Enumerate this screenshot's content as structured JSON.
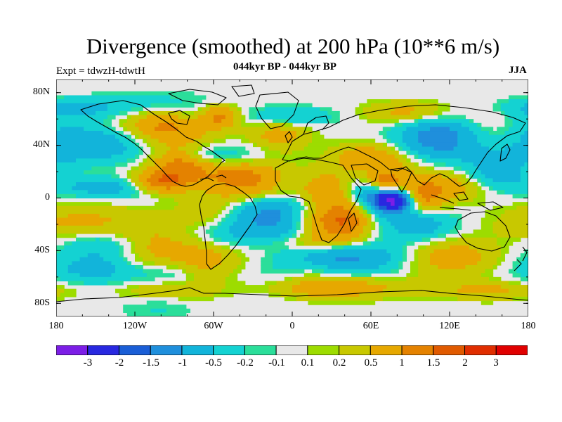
{
  "title": "Divergence (smoothed) at 200 hPa (10**6 m/s)",
  "expt_label": "Expt = tdwzH-tdwtH",
  "period_label": "044kyr BP - 044kyr BP",
  "season_label": "JJA",
  "chart_data": {
    "type": "heatmap",
    "title": "Divergence (smoothed) at 200 hPa (10**6 m/s)",
    "x_range": [
      -180,
      180
    ],
    "y_range": [
      -90,
      90
    ],
    "lat_ticks": [
      "80N",
      "40N",
      "0",
      "40S",
      "80S"
    ],
    "lon_ticks": [
      "180",
      "120W",
      "60W",
      "0",
      "60E",
      "120E",
      "180"
    ],
    "colorbar_labels": [
      "-3",
      "-2",
      "-1.5",
      "-1",
      "-0.5",
      "-0.2",
      "-0.1",
      "0.1",
      "0.2",
      "0.5",
      "1",
      "1.5",
      "2",
      "3"
    ],
    "colorbar_colors": [
      "#7c1ee6",
      "#2828e0",
      "#1a5ed6",
      "#1f8fdc",
      "#12b4da",
      "#14d2d2",
      "#2bde9a",
      "#e8e8e8",
      "#9ddc00",
      "#c8c800",
      "#e6a800",
      "#e48200",
      "#e05a00",
      "#e02e00",
      "#e00000"
    ],
    "missing_color": "#e8e8e8",
    "coastline_color": "#000000"
  }
}
